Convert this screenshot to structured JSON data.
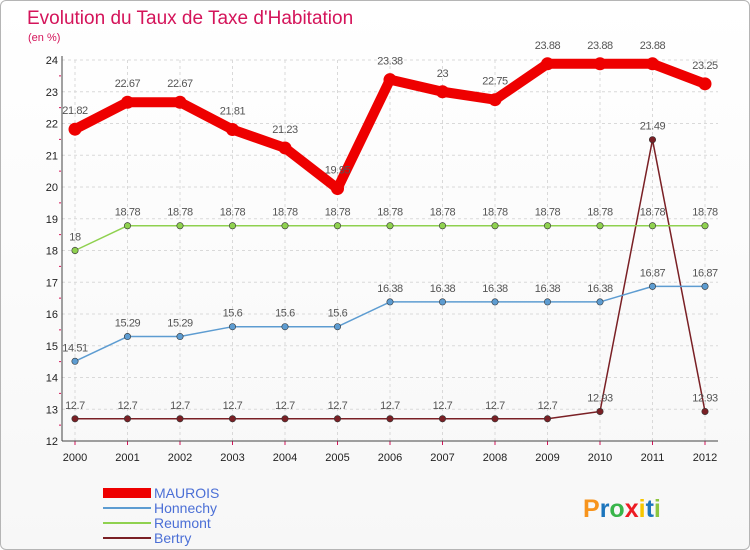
{
  "chart_data": {
    "type": "line",
    "title": "Evolution du Taux de Taxe d'Habitation",
    "subtitle": "(en %)",
    "x": [
      "2000",
      "2001",
      "2002",
      "2003",
      "2004",
      "2005",
      "2006",
      "2007",
      "2008",
      "2009",
      "2010",
      "2011",
      "2012"
    ],
    "ylim": [
      12,
      24
    ],
    "yticks": [
      "12",
      "13",
      "14",
      "15",
      "16",
      "17",
      "18",
      "19",
      "20",
      "21",
      "22",
      "23",
      "24"
    ],
    "grid": true,
    "legend_position": "bottom-left",
    "series": [
      {
        "name": "MAUROIS",
        "color": "#ee0000",
        "values": [
          21.82,
          22.67,
          22.67,
          21.81,
          21.23,
          19.95,
          23.38,
          23,
          22.75,
          23.88,
          23.88,
          23.88,
          23.25
        ],
        "labels": [
          "21.82",
          "22.67",
          "22.67",
          "21.81",
          "21.23",
          "19.95",
          "23.38",
          "23",
          "22.75",
          "23.88",
          "23.88",
          "23.88",
          "23.25"
        ]
      },
      {
        "name": "Honnechy",
        "color": "#5d9cd1",
        "values": [
          14.51,
          15.29,
          15.29,
          15.6,
          15.6,
          15.6,
          16.38,
          16.38,
          16.38,
          16.38,
          16.38,
          16.87,
          16.87
        ],
        "labels": [
          "14.51",
          "15.29",
          "15.29",
          "15.6",
          "15.6",
          "15.6",
          "16.38",
          "16.38",
          "16.38",
          "16.38",
          "16.38",
          "16.87",
          "16.87"
        ]
      },
      {
        "name": "Reumont",
        "color": "#8fd14f",
        "values": [
          18,
          18.78,
          18.78,
          18.78,
          18.78,
          18.78,
          18.78,
          18.78,
          18.78,
          18.78,
          18.78,
          18.78,
          18.78
        ],
        "labels": [
          "18",
          "18.78",
          "18.78",
          "18.78",
          "18.78",
          "18.78",
          "18.78",
          "18.78",
          "18.78",
          "18.78",
          "18.78",
          "18.78",
          "18.78"
        ]
      },
      {
        "name": "Bertry",
        "color": "#7a2025",
        "values": [
          12.7,
          12.7,
          12.7,
          12.7,
          12.7,
          12.7,
          12.7,
          12.7,
          12.7,
          12.7,
          12.93,
          21.49,
          12.93
        ],
        "labels": [
          "12.7",
          "12.7",
          "12.7",
          "12.7",
          "12.7",
          "12.7",
          "12.7",
          "12.7",
          "12.7",
          "12.7",
          "12.93",
          "21.49",
          "12.93"
        ]
      }
    ]
  },
  "logo": {
    "letters": [
      "P",
      "r",
      "o",
      "x",
      "i",
      "t",
      "i"
    ],
    "colors": [
      "#f7941d",
      "#1c75bc",
      "#39b54a",
      "#ed1c24",
      "#f7c600",
      "#1c75bc",
      "#8dc63f"
    ]
  }
}
